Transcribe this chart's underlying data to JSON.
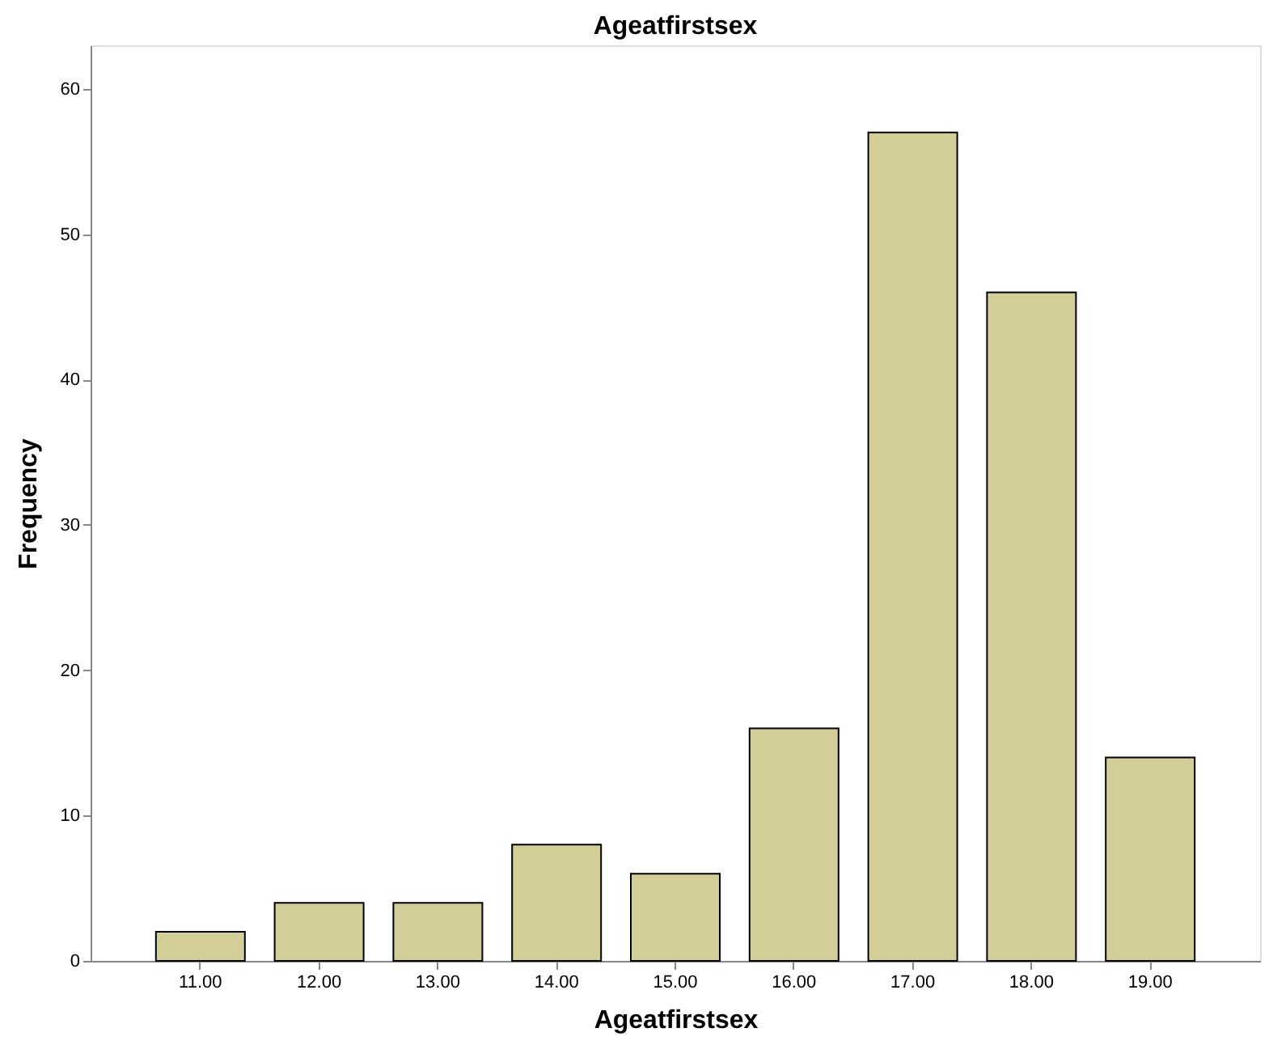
{
  "chart_data": {
    "type": "bar",
    "title": "Ageatfirstsex",
    "xlabel": "Ageatfirstsex",
    "ylabel": "Frequency",
    "categories": [
      "11.00",
      "12.00",
      "13.00",
      "14.00",
      "15.00",
      "16.00",
      "17.00",
      "18.00",
      "19.00"
    ],
    "values": [
      2,
      4,
      4,
      8,
      6,
      16,
      57,
      46,
      14
    ],
    "color": "#d3ce97",
    "ylim": [
      0,
      63
    ],
    "yticks": [
      0,
      10,
      20,
      30,
      40,
      50,
      60
    ],
    "grid": false
  }
}
